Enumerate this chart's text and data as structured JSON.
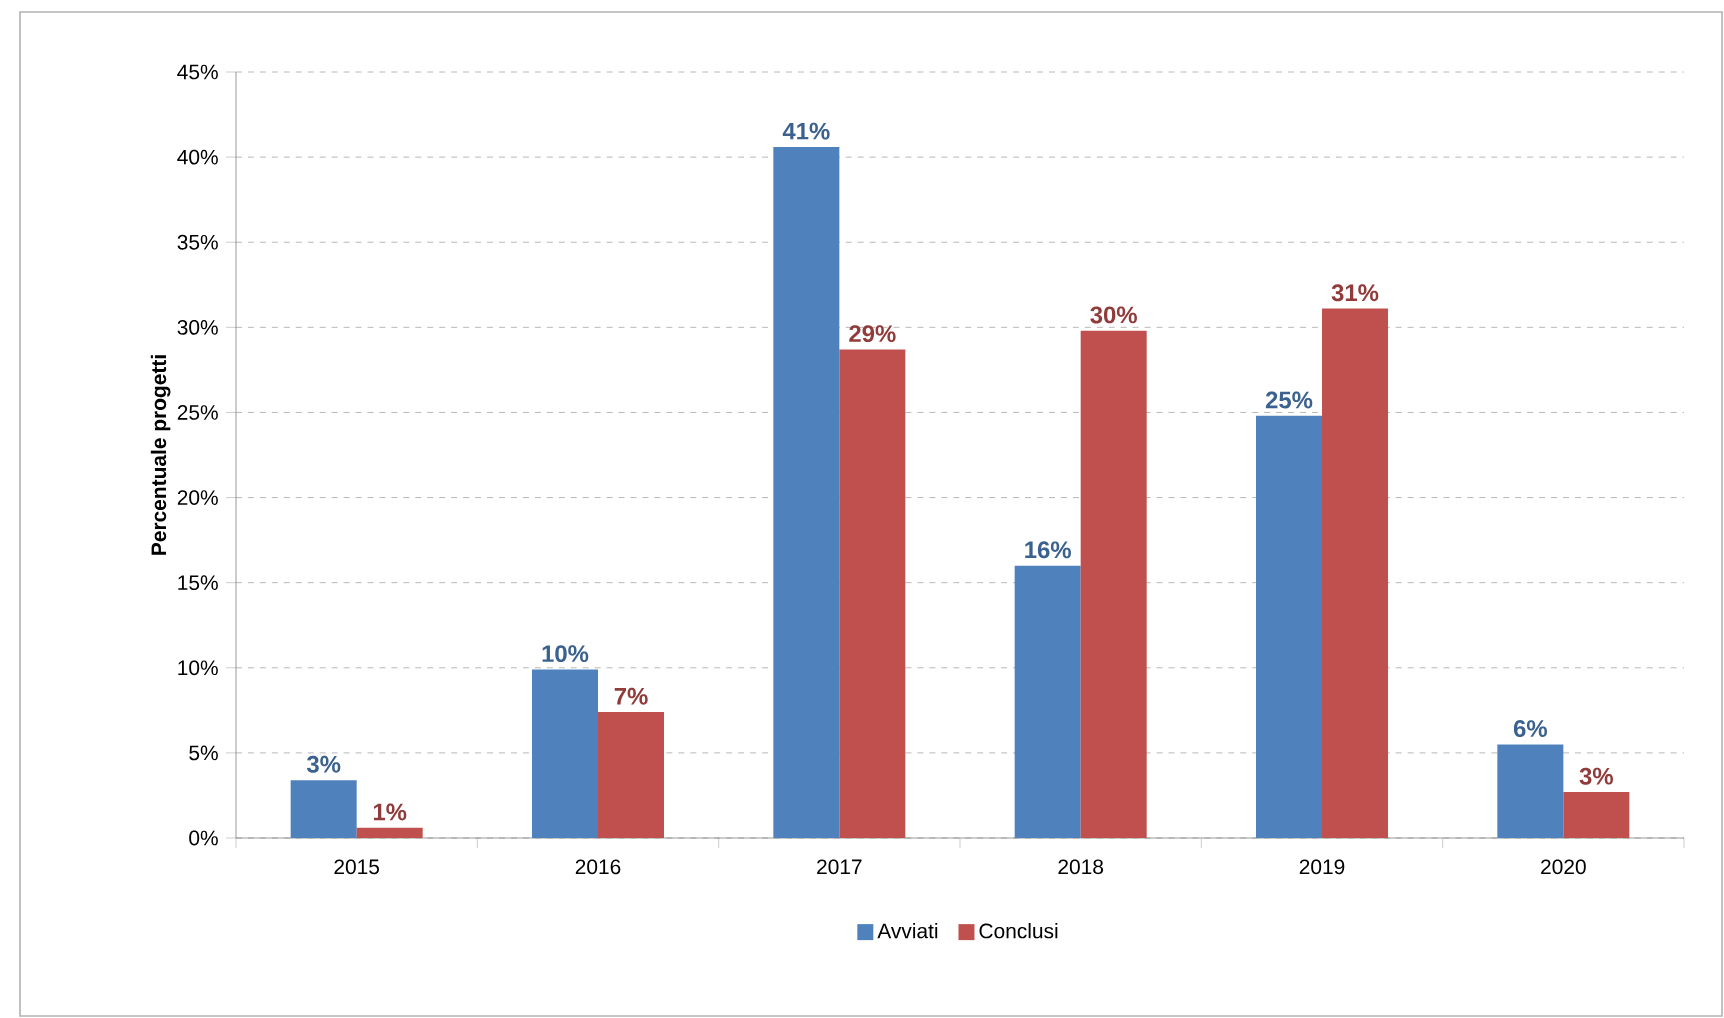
{
  "chart_data": {
    "type": "bar",
    "ylabel": "Percentuale progetti",
    "categories": [
      "2015",
      "2016",
      "2017",
      "2018",
      "2019",
      "2020"
    ],
    "series": [
      {
        "name": "Avviati",
        "color": "#4f81bd",
        "values": [
          3.4,
          9.9,
          40.6,
          16.0,
          24.8,
          5.5
        ],
        "value_labels": [
          "3%",
          "10%",
          "41%",
          "16%",
          "25%",
          "6%"
        ]
      },
      {
        "name": "Conclusi",
        "color": "#c0504d",
        "values": [
          0.6,
          7.4,
          28.7,
          29.8,
          31.1,
          2.7
        ],
        "value_labels": [
          "1%",
          "7%",
          "29%",
          "30%",
          "31%",
          "3%"
        ]
      }
    ],
    "ylim": [
      0,
      45
    ],
    "yticks": [
      {
        "value": 0,
        "label": "0%"
      },
      {
        "value": 5,
        "label": "5%"
      },
      {
        "value": 10,
        "label": "10%"
      },
      {
        "value": 15,
        "label": "15%"
      },
      {
        "value": 20,
        "label": "20%"
      },
      {
        "value": 25,
        "label": "25%"
      },
      {
        "value": 30,
        "label": "30%"
      },
      {
        "value": 35,
        "label": "35%"
      },
      {
        "value": 40,
        "label": "40%"
      },
      {
        "value": 45,
        "label": "45%"
      }
    ],
    "grid": "y",
    "legend": "bottom"
  }
}
